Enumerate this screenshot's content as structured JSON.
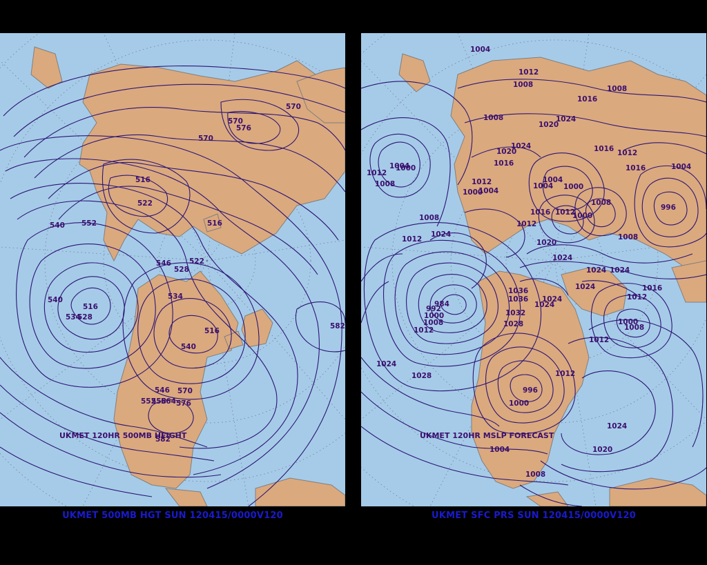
{
  "colors": {
    "ocean": "#a6cbe8",
    "land": "#dba97e",
    "border": "#7f7f7f",
    "contour": "#2a1575",
    "label": "#3a0f6e",
    "caption": "#1a1acc",
    "graticule": "#6f7f96"
  },
  "left": {
    "caption": "UKMET 500MB HGT SUN 120415/0000V120",
    "map_title": "UKMET 120HR 500MB HEIGHT",
    "labels": [
      {
        "text": "570"
      },
      {
        "text": "576"
      },
      {
        "text": "570"
      },
      {
        "text": "570"
      },
      {
        "text": "516"
      },
      {
        "text": "522"
      },
      {
        "text": "540"
      },
      {
        "text": "552"
      },
      {
        "text": "516"
      },
      {
        "text": "546"
      },
      {
        "text": "528"
      },
      {
        "text": "522"
      },
      {
        "text": "534"
      },
      {
        "text": "540"
      },
      {
        "text": "516"
      },
      {
        "text": "534"
      },
      {
        "text": "528"
      },
      {
        "text": "516"
      },
      {
        "text": "540"
      },
      {
        "text": "582"
      },
      {
        "text": "546"
      },
      {
        "text": "570"
      },
      {
        "text": "552"
      },
      {
        "text": "558"
      },
      {
        "text": "564"
      },
      {
        "text": "576"
      },
      {
        "text": "582"
      }
    ]
  },
  "right": {
    "caption": "UKMET SFC PRS SUN 120415/0000V120",
    "map_title": "UKMET 120HR MSLP FORECAST",
    "labels": [
      {
        "text": "1004"
      },
      {
        "text": "1012"
      },
      {
        "text": "1008"
      },
      {
        "text": "1008"
      },
      {
        "text": "1016"
      },
      {
        "text": "1008"
      },
      {
        "text": "1020"
      },
      {
        "text": "1024"
      },
      {
        "text": "1024"
      },
      {
        "text": "1020"
      },
      {
        "text": "1016"
      },
      {
        "text": "1016"
      },
      {
        "text": "1012"
      },
      {
        "text": "1004"
      },
      {
        "text": "1012"
      },
      {
        "text": "1000"
      },
      {
        "text": "1008"
      },
      {
        "text": "1004"
      },
      {
        "text": "1012"
      },
      {
        "text": "1004"
      },
      {
        "text": "1000"
      },
      {
        "text": "1004"
      },
      {
        "text": "1000"
      },
      {
        "text": "1008"
      },
      {
        "text": "996"
      },
      {
        "text": "1012"
      },
      {
        "text": "1008"
      },
      {
        "text": "1024"
      },
      {
        "text": "1012"
      },
      {
        "text": "1016"
      },
      {
        "text": "1020"
      },
      {
        "text": "1008"
      },
      {
        "text": "1004"
      },
      {
        "text": "1012"
      },
      {
        "text": "1000"
      },
      {
        "text": "1016"
      },
      {
        "text": "1024"
      },
      {
        "text": "1024"
      },
      {
        "text": "1024"
      },
      {
        "text": "1024"
      },
      {
        "text": "1016"
      },
      {
        "text": "1012"
      },
      {
        "text": "1036"
      },
      {
        "text": "1036"
      },
      {
        "text": "1024"
      },
      {
        "text": "1024"
      },
      {
        "text": "1032"
      },
      {
        "text": "1028"
      },
      {
        "text": "984"
      },
      {
        "text": "992"
      },
      {
        "text": "1000"
      },
      {
        "text": "1008"
      },
      {
        "text": "1012"
      },
      {
        "text": "1000"
      },
      {
        "text": "1008"
      },
      {
        "text": "1012"
      },
      {
        "text": "1024"
      },
      {
        "text": "1028"
      },
      {
        "text": "1012"
      },
      {
        "text": "996"
      },
      {
        "text": "1000"
      },
      {
        "text": "1024"
      },
      {
        "text": "1020"
      },
      {
        "text": "1004"
      },
      {
        "text": "1008"
      }
    ]
  }
}
